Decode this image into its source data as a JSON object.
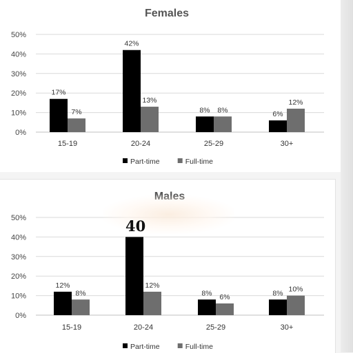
{
  "chart_data": [
    {
      "type": "bar",
      "title": "Females",
      "categories": [
        "15-19",
        "20-24",
        "25-29",
        "30+"
      ],
      "series": [
        {
          "name": "Part-time",
          "values": [
            17,
            42,
            8,
            6
          ],
          "labels": [
            "17%",
            "42%",
            "8%",
            "6%"
          ],
          "color": "#000000"
        },
        {
          "name": "Full-time",
          "values": [
            7,
            13,
            8,
            12
          ],
          "labels": [
            "7%",
            "13%",
            "8%",
            "12%"
          ],
          "color": "#6e6e6e"
        }
      ],
      "yticks": [
        "0%",
        "10%",
        "20%",
        "30%",
        "40%",
        "50%"
      ],
      "ylim": [
        0,
        50
      ],
      "grid": true,
      "legend": "bottom"
    },
    {
      "type": "bar",
      "title": "Males",
      "categories": [
        "15-19",
        "20-24",
        "25-29",
        "30+"
      ],
      "series": [
        {
          "name": "Part-time",
          "values": [
            12,
            40,
            8,
            8
          ],
          "labels": [
            "12%",
            "",
            "8%",
            "8%"
          ],
          "color": "#000000"
        },
        {
          "name": "Full-time",
          "values": [
            8,
            12,
            6,
            10
          ],
          "labels": [
            "8%",
            "12%",
            "6%",
            "10%"
          ],
          "color": "#6e6e6e"
        }
      ],
      "yticks": [
        "0%",
        "10%",
        "20%",
        "30%",
        "40%",
        "50%"
      ],
      "ylim": [
        0,
        50
      ],
      "grid": true,
      "legend": "bottom"
    }
  ],
  "annotation": "40"
}
